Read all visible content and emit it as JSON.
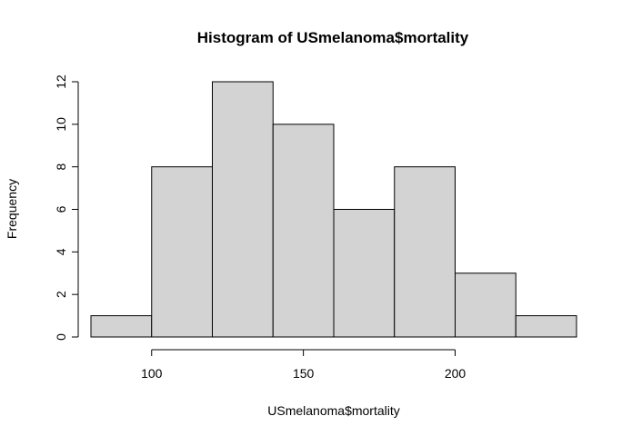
{
  "chart_data": {
    "type": "bar",
    "title": "Histogram of USmelanoma$mortality",
    "xlabel": "USmelanoma$mortality",
    "ylabel": "Frequency",
    "bins": [
      {
        "start": 80,
        "end": 100,
        "count": 1
      },
      {
        "start": 100,
        "end": 120,
        "count": 8
      },
      {
        "start": 120,
        "end": 140,
        "count": 12
      },
      {
        "start": 140,
        "end": 160,
        "count": 10
      },
      {
        "start": 160,
        "end": 180,
        "count": 6
      },
      {
        "start": 180,
        "end": 200,
        "count": 8
      },
      {
        "start": 200,
        "end": 220,
        "count": 3
      },
      {
        "start": 220,
        "end": 240,
        "count": 1
      }
    ],
    "xticks": [
      100,
      150,
      200
    ],
    "yticks": [
      0,
      2,
      4,
      6,
      8,
      10,
      12
    ],
    "xlim": [
      80,
      240
    ],
    "ylim": [
      0,
      12
    ],
    "grid": false,
    "bar_color": "#d3d3d3",
    "edge_color": "#000000"
  }
}
